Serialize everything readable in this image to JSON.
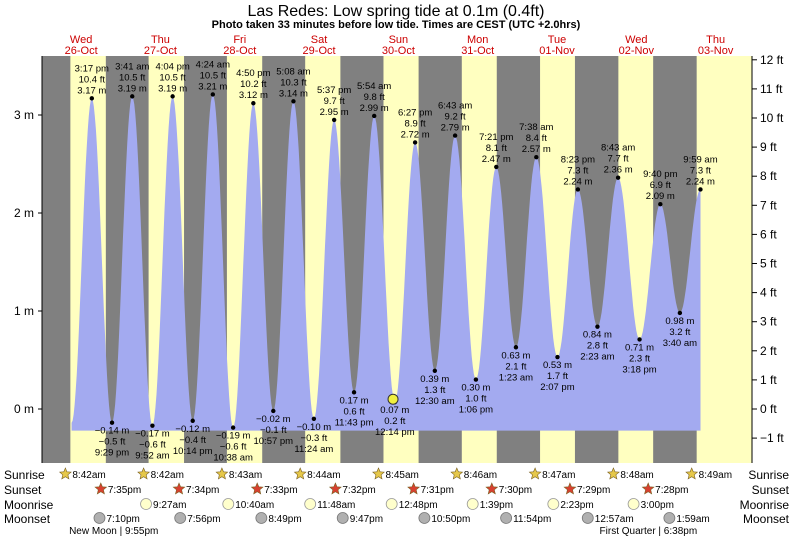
{
  "header": {
    "title": "Las Redes: Low spring tide at 0.1m (0.4ft)",
    "subtitle": "Photo taken 33 minutes before low tide. Times are CEST (UTC +2.0hrs)"
  },
  "colors": {
    "night": "#808080",
    "day": "#ffffc0",
    "water": "#a3aaf0",
    "sun_star": "#e6c84a",
    "sunset_star": "#d84030",
    "moon_face": "#ffffcc",
    "moonset_face": "#b0b0b0",
    "photo_marker": "#f0f040"
  },
  "days": [
    {
      "name": "Wed",
      "date": "26-Oct"
    },
    {
      "name": "Thu",
      "date": "27-Oct"
    },
    {
      "name": "Fri",
      "date": "28-Oct"
    },
    {
      "name": "Sat",
      "date": "29-Oct"
    },
    {
      "name": "Sun",
      "date": "30-Oct"
    },
    {
      "name": "Mon",
      "date": "31-Oct"
    },
    {
      "name": "Tue",
      "date": "01-Nov"
    },
    {
      "name": "Wed",
      "date": "02-Nov"
    },
    {
      "name": "Thu",
      "date": "03-Nov"
    }
  ],
  "chart_data": {
    "type": "area",
    "title": "Las Redes: Low spring tide at 0.1m (0.4ft)",
    "subtitle": "Photo taken 33 minutes before low tide. Times are CEST (UTC +2.0hrs)",
    "x_unit": "hours since Wed 26-Oct 00:00 CEST",
    "xlim": [
      0,
      230
    ],
    "left_axis": {
      "unit": "m",
      "ylim": [
        -0.5,
        3.6
      ],
      "ticks": [
        0,
        1,
        2,
        3
      ],
      "tick_labels": [
        "0 m",
        "1 m",
        "2 m",
        "3 m"
      ]
    },
    "right_axis": {
      "unit": "ft",
      "ticks": [
        -1,
        0,
        1,
        2,
        3,
        4,
        5,
        6,
        7,
        8,
        9,
        10,
        11,
        12
      ],
      "tick_labels": [
        "−1 ft",
        "0 ft",
        "1 ft",
        "2 ft",
        "3 ft",
        "4 ft",
        "5 ft",
        "6 ft",
        "7 ft",
        "8 ft",
        "9 ft",
        "10 ft",
        "11 ft",
        "12 ft"
      ]
    },
    "tides": [
      {
        "t": 15.28,
        "m": 3.17,
        "type": "high",
        "time": "3:17 pm",
        "ft": "10.4 ft",
        "mlabel": "3.17 m"
      },
      {
        "t": 21.48,
        "m": -0.14,
        "type": "low",
        "time": "9:29 pm",
        "ft": "−0.5 ft",
        "mlabel": "−0.14 m"
      },
      {
        "t": 27.68,
        "m": 3.19,
        "type": "high",
        "time": "3:41 am",
        "ft": "10.5 ft",
        "mlabel": "3.19 m"
      },
      {
        "t": 33.87,
        "m": -0.17,
        "type": "low",
        "time": "9:52 am",
        "ft": "−0.6 ft",
        "mlabel": "−0.17 m"
      },
      {
        "t": 40.07,
        "m": 3.19,
        "type": "high",
        "time": "4:04 pm",
        "ft": "10.5 ft",
        "mlabel": "3.19 m"
      },
      {
        "t": 46.23,
        "m": -0.12,
        "type": "low",
        "time": "10:14 pm",
        "ft": "−0.4 ft",
        "mlabel": "−0.12 m"
      },
      {
        "t": 52.4,
        "m": 3.21,
        "type": "high",
        "time": "4:24 am",
        "ft": "10.5 ft",
        "mlabel": "3.21 m"
      },
      {
        "t": 58.63,
        "m": -0.19,
        "type": "low",
        "time": "10:38 am",
        "ft": "−0.6 ft",
        "mlabel": "−0.19 m"
      },
      {
        "t": 64.83,
        "m": 3.12,
        "type": "high",
        "time": "4:50 pm",
        "ft": "10.2 ft",
        "mlabel": "3.12 m"
      },
      {
        "t": 70.95,
        "m": -0.02,
        "type": "low",
        "time": "10:57 pm",
        "ft": "−0.1 ft",
        "mlabel": "−0.02 m"
      },
      {
        "t": 77.13,
        "m": 3.14,
        "type": "high",
        "time": "5:08 am",
        "ft": "10.3 ft",
        "mlabel": "3.14 m"
      },
      {
        "t": 83.4,
        "m": -0.1,
        "type": "low",
        "time": "11:24 am",
        "ft": "−0.3 ft",
        "mlabel": "−0.10 m"
      },
      {
        "t": 89.62,
        "m": 2.95,
        "type": "high",
        "time": "5:37 pm",
        "ft": "9.7 ft",
        "mlabel": "2.95 m"
      },
      {
        "t": 95.72,
        "m": 0.17,
        "type": "low",
        "time": "11:43 pm",
        "ft": "0.6 ft",
        "mlabel": "0.17 m"
      },
      {
        "t": 101.9,
        "m": 2.99,
        "type": "high",
        "time": "5:54 am",
        "ft": "9.8 ft",
        "mlabel": "2.99 m"
      },
      {
        "t": 108.23,
        "m": 0.07,
        "type": "low",
        "time": "12:14 pm",
        "ft": "0.2 ft",
        "mlabel": "0.07 m"
      },
      {
        "t": 114.45,
        "m": 2.72,
        "type": "high",
        "time": "6:27 pm",
        "ft": "8.9 ft",
        "mlabel": "2.72 m"
      },
      {
        "t": 120.5,
        "m": 0.39,
        "type": "low",
        "time": "12:30 am",
        "ft": "1.3 ft",
        "mlabel": "0.39 m"
      },
      {
        "t": 126.72,
        "m": 2.79,
        "type": "high",
        "time": "6:43 am",
        "ft": "9.2 ft",
        "mlabel": "2.79 m"
      },
      {
        "t": 133.1,
        "m": 0.3,
        "type": "low",
        "time": "1:06 pm",
        "ft": "1.0 ft",
        "mlabel": "0.30 m"
      },
      {
        "t": 139.35,
        "m": 2.47,
        "type": "high",
        "time": "7:21 pm",
        "ft": "8.1 ft",
        "mlabel": "2.47 m"
      },
      {
        "t": 145.38,
        "m": 0.63,
        "type": "low",
        "time": "1:23 am",
        "ft": "2.1 ft",
        "mlabel": "0.63 m"
      },
      {
        "t": 151.63,
        "m": 2.57,
        "type": "high",
        "time": "7:38 am",
        "ft": "8.4 ft",
        "mlabel": "2.57 m"
      },
      {
        "t": 158.12,
        "m": 0.53,
        "type": "low",
        "time": "2:07 pm",
        "ft": "1.7 ft",
        "mlabel": "0.53 m"
      },
      {
        "t": 164.38,
        "m": 2.24,
        "type": "high",
        "time": "8:23 pm",
        "ft": "7.3 ft",
        "mlabel": "2.24 m"
      },
      {
        "t": 170.38,
        "m": 0.84,
        "type": "low",
        "time": "2:23 am",
        "ft": "2.8 ft",
        "mlabel": "0.84 m"
      },
      {
        "t": 176.72,
        "m": 2.36,
        "type": "high",
        "time": "8:43 am",
        "ft": "7.7 ft",
        "mlabel": "2.36 m"
      },
      {
        "t": 183.3,
        "m": 0.71,
        "type": "low",
        "time": "3:18 pm",
        "ft": "2.3 ft",
        "mlabel": "0.71 m"
      },
      {
        "t": 189.67,
        "m": 2.09,
        "type": "high",
        "time": "9:40 pm",
        "ft": "6.9 ft",
        "mlabel": "2.09 m"
      },
      {
        "t": 195.67,
        "m": 0.98,
        "type": "low",
        "time": "3:40 am",
        "ft": "3.2 ft",
        "mlabel": "0.98 m"
      },
      {
        "t": 201.98,
        "m": 2.24,
        "type": "high",
        "time": "9:59 am",
        "ft": "7.3 ft",
        "mlabel": "2.24 m"
      }
    ],
    "photo": {
      "t": 107.68,
      "m": 0.1
    }
  },
  "rows": {
    "sunrise_label": "Sunrise",
    "sunset_label": "Sunset",
    "moonrise_label": "Moonrise",
    "moonset_label": "Moonset"
  },
  "sunrise": [
    {
      "t": 8.7,
      "text": "8:42am"
    },
    {
      "t": 32.7,
      "text": "8:42am"
    },
    {
      "t": 56.72,
      "text": "8:43am"
    },
    {
      "t": 80.73,
      "text": "8:44am"
    },
    {
      "t": 104.75,
      "text": "8:45am"
    },
    {
      "t": 128.77,
      "text": "8:46am"
    },
    {
      "t": 152.78,
      "text": "8:47am"
    },
    {
      "t": 176.8,
      "text": "8:48am"
    },
    {
      "t": 200.82,
      "text": "8:49am"
    }
  ],
  "sunset": [
    {
      "t": 19.58,
      "text": "7:35pm"
    },
    {
      "t": 43.57,
      "text": "7:34pm"
    },
    {
      "t": 67.55,
      "text": "7:33pm"
    },
    {
      "t": 91.53,
      "text": "7:32pm"
    },
    {
      "t": 115.52,
      "text": "7:31pm"
    },
    {
      "t": 139.5,
      "text": "7:30pm"
    },
    {
      "t": 163.48,
      "text": "7:29pm"
    },
    {
      "t": 187.47,
      "text": "7:28pm"
    }
  ],
  "moonrise": [
    {
      "t": 33.45,
      "text": "9:27am"
    },
    {
      "t": 58.67,
      "text": "10:40am"
    },
    {
      "t": 83.8,
      "text": "11:48am"
    },
    {
      "t": 108.8,
      "text": "12:48pm"
    },
    {
      "t": 133.65,
      "text": "1:39pm"
    },
    {
      "t": 158.38,
      "text": "2:23pm"
    },
    {
      "t": 183.0,
      "text": "3:00pm"
    }
  ],
  "moonset": [
    {
      "t": 19.17,
      "text": "7:10pm"
    },
    {
      "t": 43.93,
      "text": "7:56pm"
    },
    {
      "t": 68.82,
      "text": "8:49pm"
    },
    {
      "t": 93.78,
      "text": "9:47pm"
    },
    {
      "t": 118.83,
      "text": "10:50pm"
    },
    {
      "t": 143.9,
      "text": "11:54pm"
    },
    {
      "t": 168.95,
      "text": "12:57am"
    },
    {
      "t": 193.98,
      "text": "1:59am"
    }
  ],
  "moon_phases": [
    {
      "t": 22.0,
      "text": "New Moon | 9:55pm"
    },
    {
      "t": 186.0,
      "text": "First Quarter | 6:38pm"
    }
  ]
}
